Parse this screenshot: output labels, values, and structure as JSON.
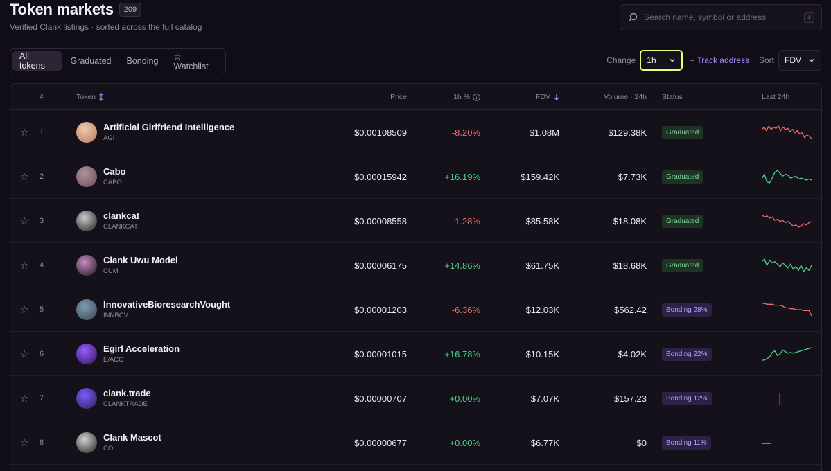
{
  "header": {
    "title": "Token markets",
    "count": "209",
    "subtitle": "Verified Clank listings · sorted across the full catalog"
  },
  "search": {
    "placeholder": "Search name, symbol or address",
    "shortcut": "/"
  },
  "tabs": [
    {
      "label": "All tokens",
      "active": true
    },
    {
      "label": "Graduated",
      "active": false
    },
    {
      "label": "Bonding",
      "active": false
    },
    {
      "label": "☆ Watchlist",
      "active": false
    }
  ],
  "controls": {
    "change_label": "Change",
    "change_value": "1h",
    "track_label": "+ Track address",
    "sort_label": "Sort",
    "sort_value": "FDV"
  },
  "columns": {
    "rank": "#",
    "token": "Token",
    "price": "Price",
    "change": "1h %",
    "fdv": "FDV",
    "volume": "Volume · 24h",
    "status": "Status",
    "last24h": "Last 24h"
  },
  "colors": {
    "positive": "#4fd18a",
    "negative": "#f26a6a",
    "accent": "#a88bff",
    "highlight": "#e9ff7a"
  },
  "rows": [
    {
      "rank": "1",
      "name": "Artificial Girlfriend Intelligence",
      "symbol": "AGI",
      "price": "$0.00108509",
      "change": "-8.20%",
      "dir": "neg",
      "fdv": "$1.08M",
      "volume": "$129.38K",
      "status": "Graduated",
      "status_type": "grad",
      "avatar_colors": [
        "#f1c8a8",
        "#b57a63"
      ],
      "spark": [
        11,
        9,
        12,
        8,
        11,
        9,
        10,
        8,
        12,
        9,
        11,
        10,
        13,
        11,
        14,
        12,
        15,
        14,
        18,
        16,
        17,
        19
      ]
    },
    {
      "rank": "2",
      "name": "Cabo",
      "symbol": "CABO",
      "price": "$0.00015942",
      "change": "+16.19%",
      "dir": "pos",
      "fdv": "$159.42K",
      "volume": "$7.73K",
      "status": "Graduated",
      "status_type": "grad",
      "avatar_colors": [
        "#b0909a",
        "#6a4c58"
      ],
      "spark": [
        15,
        10,
        18,
        19,
        14,
        8,
        6,
        9,
        12,
        10,
        11,
        14,
        13,
        12,
        15,
        14,
        15,
        16,
        15,
        16
      ]
    },
    {
      "rank": "3",
      "name": "clankcat",
      "symbol": "CLANKCAT",
      "price": "$0.00008558",
      "change": "-1.28%",
      "dir": "neg",
      "fdv": "$85.58K",
      "volume": "$18.08K",
      "status": "Graduated",
      "status_type": "grad",
      "avatar_colors": [
        "#c9c9c9",
        "#1c1c1c"
      ],
      "spark": [
        8,
        10,
        9,
        11,
        10,
        13,
        12,
        14,
        13,
        15,
        14,
        16,
        18,
        17,
        19,
        18,
        16,
        17,
        15,
        14
      ]
    },
    {
      "rank": "4",
      "name": "Clank Uwu Model",
      "symbol": "CUM",
      "price": "$0.00006175",
      "change": "+14.86%",
      "dir": "pos",
      "fdv": "$61.75K",
      "volume": "$18.68K",
      "status": "Graduated",
      "status_type": "grad",
      "avatar_colors": [
        "#c98abd",
        "#1a1520"
      ],
      "spark": [
        9,
        7,
        12,
        8,
        10,
        9,
        11,
        13,
        10,
        12,
        14,
        11,
        15,
        13,
        16,
        12,
        17,
        14,
        16,
        12
      ]
    },
    {
      "rank": "5",
      "name": "InnovativeBioresearchVought",
      "symbol": "INNBCV",
      "price": "$0.00001203",
      "change": "-6.36%",
      "dir": "neg",
      "fdv": "$12.03K",
      "volume": "$562.42",
      "status": "Bonding 28%",
      "status_type": "bond",
      "avatar_colors": [
        "#7d9bb0",
        "#3a4654"
      ],
      "spark": [
        8,
        8,
        9,
        9,
        9,
        10,
        10,
        10,
        11,
        13,
        13,
        14,
        14,
        15,
        15,
        15,
        16,
        16,
        16,
        22
      ]
    },
    {
      "rank": "6",
      "name": "Egirl Acceleration",
      "symbol": "E/ACC",
      "price": "$0.00001015",
      "change": "+16.78%",
      "dir": "pos",
      "fdv": "$10.15K",
      "volume": "$4.02K",
      "status": "Bonding 22%",
      "status_type": "bond",
      "avatar_colors": [
        "#9b5cff",
        "#2a1650"
      ],
      "spark": [
        20,
        20,
        18,
        16,
        10,
        8,
        14,
        12,
        7,
        9,
        11,
        10,
        11,
        10,
        9,
        8,
        7,
        6,
        5,
        4
      ]
    },
    {
      "rank": "7",
      "name": "clank.trade",
      "symbol": "CLANKTRADE",
      "price": "$0.00000707",
      "change": "+0.00%",
      "dir": "pos",
      "fdv": "$7.07K",
      "volume": "$157.23",
      "status": "Bonding 12%",
      "status_type": "bond",
      "avatar_colors": [
        "#7b5cff",
        "#2a1f4a"
      ],
      "spark_mark": "|"
    },
    {
      "rank": "8",
      "name": "Clank Mascot",
      "symbol": "COL",
      "price": "$0.00000677",
      "change": "+0.00%",
      "dir": "pos",
      "fdv": "$6.77K",
      "volume": "$0",
      "status": "Bonding 11%",
      "status_type": "bond",
      "avatar_colors": [
        "#d0d0d0",
        "#222222"
      ],
      "spark_mark": "—"
    }
  ]
}
